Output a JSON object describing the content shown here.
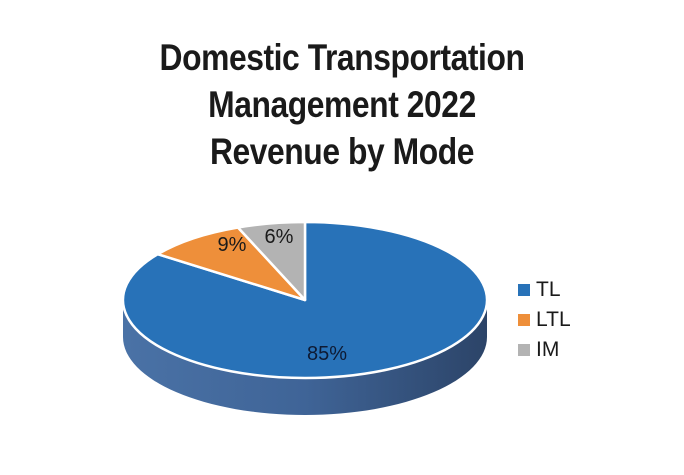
{
  "chart_data": {
    "type": "pie",
    "title": [
      "Domestic Transportation",
      "Management 2022",
      "Revenue by Mode"
    ],
    "categories": [
      "TL",
      "LTL",
      "IM"
    ],
    "values": [
      85,
      9,
      6
    ],
    "labels": [
      "85%",
      "9%",
      "6%"
    ],
    "unit": "%",
    "colors": [
      "#2872b8",
      "#ee8f3a",
      "#b3b3b3"
    ],
    "side_colors": [
      "#3a5f92",
      "#c7742c",
      "#8f8f8f"
    ],
    "legend": {
      "position": "right",
      "entries": [
        {
          "label": "TL",
          "color": "#2872b8"
        },
        {
          "label": "LTL",
          "color": "#ee8f3a"
        },
        {
          "label": "IM",
          "color": "#b3b3b3"
        }
      ]
    },
    "style": "3d"
  }
}
